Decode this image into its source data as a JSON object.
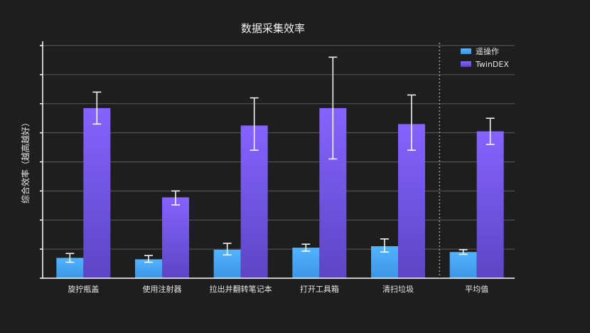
{
  "chart_data": {
    "type": "bar",
    "title": "数据采集效率",
    "xlabel": "",
    "ylabel": "综合效率（越高越好）",
    "ylim": [
      0,
      8
    ],
    "y_ticks": [
      0,
      1,
      2,
      3,
      4,
      5,
      6,
      7,
      8
    ],
    "y_tick_labels_visible": false,
    "grid": true,
    "legend_position": "top-right",
    "categories": [
      "旋拧瓶盖",
      "使用注射器",
      "拉出并翻转笔记本",
      "打开工具箱",
      "清扫垃圾",
      "平均值"
    ],
    "series": [
      {
        "name": "遥操作",
        "color": "#4aa8f5",
        "values": [
          0.7,
          0.65,
          0.98,
          1.05,
          1.1,
          0.9
        ],
        "error_low": [
          0.55,
          0.55,
          0.8,
          0.93,
          0.9,
          0.82
        ],
        "error_high": [
          0.85,
          0.78,
          1.2,
          1.17,
          1.35,
          0.98
        ]
      },
      {
        "name": "TwinDEX",
        "color": "#7c5cf0",
        "values": [
          5.85,
          2.78,
          5.25,
          5.85,
          5.3,
          5.05
        ],
        "error_low": [
          5.3,
          2.52,
          4.4,
          4.1,
          4.4,
          4.6
        ],
        "error_high": [
          6.4,
          3.0,
          6.2,
          7.6,
          6.3,
          5.5
        ]
      }
    ],
    "separator_before_category": "平均值"
  }
}
